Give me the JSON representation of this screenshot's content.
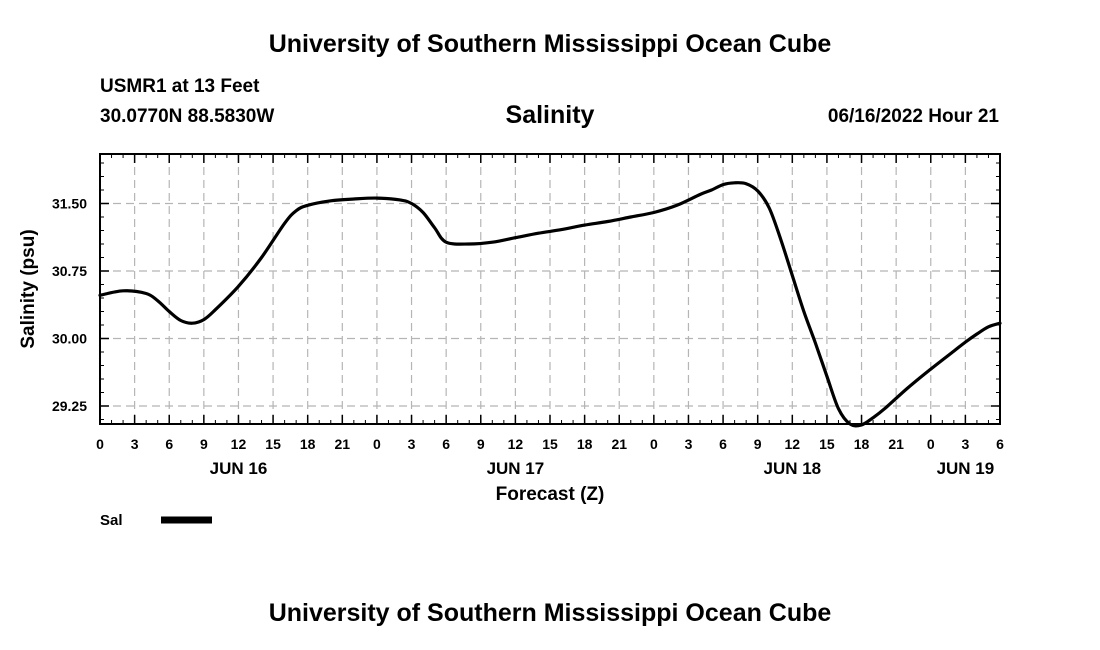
{
  "header": {
    "title": "University of Southern Mississippi Ocean Cube",
    "station": "USMR1 at 13 Feet",
    "coordinates": "30.0770N  88.5830W",
    "variable": "Salinity",
    "valid_time": "06/16/2022 Hour 21"
  },
  "footer": {
    "title": "University of Southern Mississippi Ocean Cube"
  },
  "chart_data": {
    "type": "line",
    "title": "Salinity",
    "xlabel": "Forecast (Z)",
    "ylabel": "Salinity (psu)",
    "x_unit": "hours since JUN 16 00Z",
    "xlim": [
      0,
      78
    ],
    "ylim": [
      29.05,
      32.05
    ],
    "grid": true,
    "y_ticks": [
      "29.25",
      "30.00",
      "30.75",
      "31.50"
    ],
    "x_tick_labels": [
      "0",
      "3",
      "6",
      "9",
      "12",
      "15",
      "18",
      "21",
      "0",
      "3",
      "6",
      "9",
      "12",
      "15",
      "18",
      "21",
      "0",
      "3",
      "6",
      "9",
      "12",
      "15",
      "18",
      "21",
      "0",
      "3",
      "6"
    ],
    "date_labels": [
      {
        "x": 12,
        "label": "JUN 16"
      },
      {
        "x": 36,
        "label": "JUN 17"
      },
      {
        "x": 60,
        "label": "JUN 18"
      },
      {
        "x": 75,
        "label": "JUN 19"
      }
    ],
    "legend": [
      {
        "label": "Sal",
        "color": "#000000"
      }
    ],
    "series": [
      {
        "name": "Sal",
        "color": "#000000",
        "x": [
          0,
          2,
          4,
          5,
          6,
          7,
          8,
          9,
          10,
          12,
          14,
          16,
          17,
          18,
          20,
          22,
          24,
          26,
          27,
          28,
          29,
          30,
          32,
          34,
          36,
          38,
          40,
          42,
          44,
          46,
          48,
          50,
          52,
          53,
          54,
          55,
          56,
          57,
          58,
          59,
          60,
          61,
          62,
          63,
          64,
          65,
          66,
          67,
          68,
          70,
          72,
          74,
          75,
          76,
          77,
          78
        ],
        "values": [
          30.48,
          30.53,
          30.5,
          30.42,
          30.3,
          30.2,
          30.17,
          30.21,
          30.32,
          30.58,
          30.9,
          31.28,
          31.42,
          31.48,
          31.53,
          31.55,
          31.56,
          31.54,
          31.5,
          31.4,
          31.23,
          31.07,
          31.05,
          31.07,
          31.12,
          31.17,
          31.21,
          31.26,
          31.3,
          31.35,
          31.4,
          31.48,
          31.6,
          31.65,
          31.71,
          31.73,
          31.72,
          31.64,
          31.45,
          31.1,
          30.7,
          30.3,
          29.95,
          29.58,
          29.22,
          29.05,
          29.04,
          29.12,
          29.22,
          29.45,
          29.66,
          29.86,
          29.96,
          30.05,
          30.13,
          30.17
        ]
      }
    ]
  }
}
